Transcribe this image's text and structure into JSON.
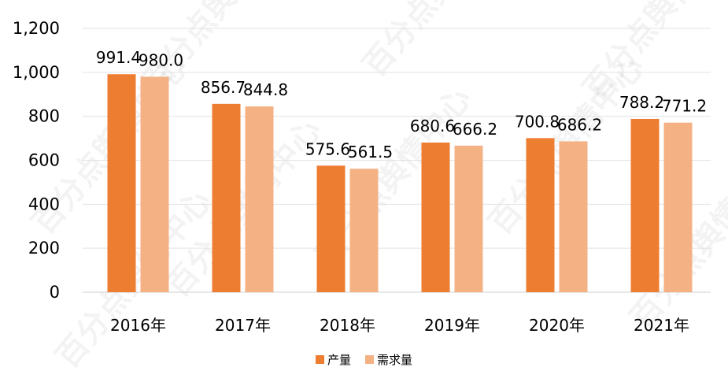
{
  "chart_data": {
    "type": "bar",
    "categories": [
      "2016年",
      "2017年",
      "2018年",
      "2019年",
      "2020年",
      "2021年"
    ],
    "series": [
      {
        "name": "产量",
        "color": "#ED7D31",
        "values": [
          991.4,
          856.7,
          575.6,
          680.6,
          700.8,
          788.2
        ],
        "labels": [
          "991.4",
          "856.7",
          "575.6",
          "680.6",
          "700.8",
          "788.2"
        ]
      },
      {
        "name": "需求量",
        "color": "#F4B183",
        "values": [
          980.0,
          844.8,
          561.5,
          666.2,
          686.2,
          771.2
        ],
        "labels": [
          "980.0",
          "844.8",
          "561.5",
          "666.2",
          "686.2",
          "771.2"
        ]
      }
    ],
    "ylim": [
      0,
      1200
    ],
    "yticks": [
      0,
      200,
      400,
      600,
      800,
      1000,
      1200
    ],
    "ytick_labels": [
      "0",
      "200",
      "400",
      "600",
      "800",
      "1,000",
      "1,200"
    ],
    "grid": true,
    "legend": "bottom-center"
  },
  "watermark": "百分点舆情中心"
}
